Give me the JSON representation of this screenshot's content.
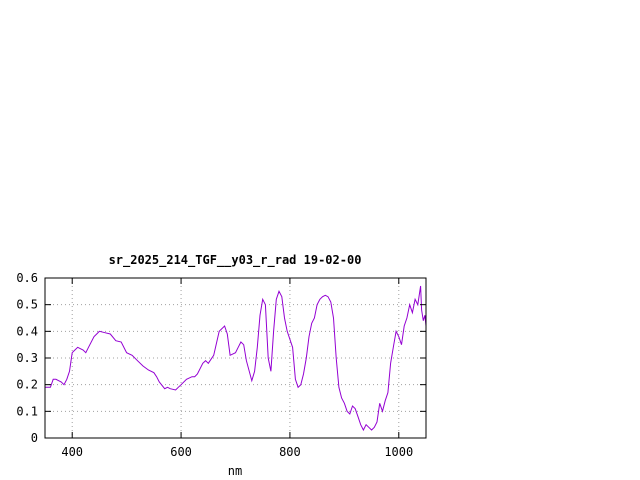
{
  "chart_data": {
    "type": "line",
    "title": "sr_2025_214_TGF__y03_r_rad 19-02-00",
    "xlabel": "nm",
    "ylabel": "",
    "xlim": [
      350,
      1050
    ],
    "ylim": [
      0,
      0.6
    ],
    "x_ticks": [
      400,
      600,
      800,
      1000
    ],
    "x_tick_labels": [
      "400",
      "600",
      "800",
      "1000"
    ],
    "y_ticks": [
      0,
      0.1,
      0.2,
      0.3,
      0.4,
      0.5,
      0.6
    ],
    "y_tick_labels": [
      "0",
      "0.1",
      "0.2",
      "0.3",
      "0.4",
      "0.5",
      "0.6"
    ],
    "grid": true,
    "legend": "none",
    "line_color": "#9400d3",
    "series": [
      {
        "x": [
          350,
          360,
          365,
          370,
          380,
          385,
          390,
          395,
          400,
          405,
          410,
          420,
          425,
          430,
          440,
          445,
          450,
          460,
          470,
          480,
          490,
          500,
          510,
          520,
          530,
          540,
          550,
          555,
          560,
          570,
          575,
          580,
          590,
          595,
          600,
          610,
          620,
          625,
          630,
          640,
          645,
          650,
          660,
          670,
          680,
          685,
          690,
          700,
          705,
          710,
          715,
          720,
          730,
          735,
          740,
          745,
          750,
          755,
          760,
          765,
          770,
          775,
          780,
          785,
          790,
          795,
          800,
          805,
          810,
          815,
          820,
          825,
          830,
          835,
          840,
          845,
          850,
          855,
          860,
          865,
          870,
          875,
          880,
          885,
          890,
          895,
          900,
          905,
          910,
          915,
          920,
          925,
          930,
          935,
          940,
          945,
          950,
          955,
          960,
          965,
          970,
          975,
          980,
          985,
          990,
          995,
          1000,
          1005,
          1010,
          1015,
          1020,
          1025,
          1030,
          1035,
          1040,
          1042,
          1045,
          1048,
          1050
        ],
        "y": [
          0.19,
          0.19,
          0.22,
          0.22,
          0.21,
          0.2,
          0.22,
          0.25,
          0.32,
          0.33,
          0.34,
          0.33,
          0.32,
          0.34,
          0.38,
          0.39,
          0.4,
          0.395,
          0.39,
          0.365,
          0.36,
          0.32,
          0.31,
          0.29,
          0.27,
          0.255,
          0.245,
          0.23,
          0.21,
          0.185,
          0.19,
          0.185,
          0.18,
          0.19,
          0.2,
          0.22,
          0.23,
          0.23,
          0.24,
          0.28,
          0.29,
          0.28,
          0.31,
          0.4,
          0.42,
          0.39,
          0.31,
          0.32,
          0.34,
          0.36,
          0.35,
          0.29,
          0.215,
          0.25,
          0.34,
          0.46,
          0.52,
          0.5,
          0.3,
          0.25,
          0.4,
          0.52,
          0.55,
          0.53,
          0.45,
          0.4,
          0.37,
          0.34,
          0.22,
          0.19,
          0.2,
          0.24,
          0.3,
          0.38,
          0.43,
          0.45,
          0.5,
          0.52,
          0.53,
          0.535,
          0.53,
          0.51,
          0.45,
          0.3,
          0.19,
          0.15,
          0.13,
          0.1,
          0.09,
          0.12,
          0.11,
          0.08,
          0.05,
          0.03,
          0.05,
          0.04,
          0.03,
          0.04,
          0.06,
          0.13,
          0.1,
          0.14,
          0.17,
          0.28,
          0.34,
          0.4,
          0.38,
          0.35,
          0.42,
          0.45,
          0.5,
          0.47,
          0.52,
          0.5,
          0.57,
          0.48,
          0.44,
          0.46,
          0.42
        ]
      }
    ]
  }
}
